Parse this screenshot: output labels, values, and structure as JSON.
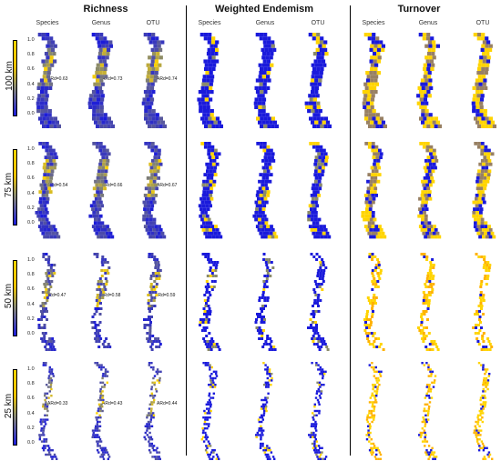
{
  "sections": [
    {
      "id": "richness",
      "title": "Richness"
    },
    {
      "id": "weighted-endemism",
      "title": "Weighted Endemism"
    },
    {
      "id": "turnover",
      "title": "Turnover"
    }
  ],
  "columns": [
    "Species",
    "Genus",
    "OTU",
    "Species",
    "Genus",
    "OTU",
    "Species",
    "Genus",
    "OTU"
  ],
  "rows": [
    {
      "label": "100 km",
      "ar": [
        "ARd=0.63",
        "ARd=0.73",
        "ARd=0.74"
      ]
    },
    {
      "label": "75 km",
      "ar": [
        "ARd=0.54",
        "ARd=0.66",
        "ARd=0.67"
      ]
    },
    {
      "label": "50 km",
      "ar": [
        "ARd=0.47",
        "ARd=0.58",
        "ARd=0.59"
      ]
    },
    {
      "label": "25 km",
      "ar": [
        "ARd=0.33",
        "ARd=0.43",
        "ARd=0.44"
      ]
    }
  ],
  "colorbar_ticks": [
    "1.0",
    "0.8",
    "0.6",
    "0.4",
    "0.2",
    "0.0"
  ],
  "colors": {
    "low": "#1a1adb",
    "mid": "#8a8a6a",
    "high": "#ffd400",
    "low_turnover": "#ffb200"
  }
}
